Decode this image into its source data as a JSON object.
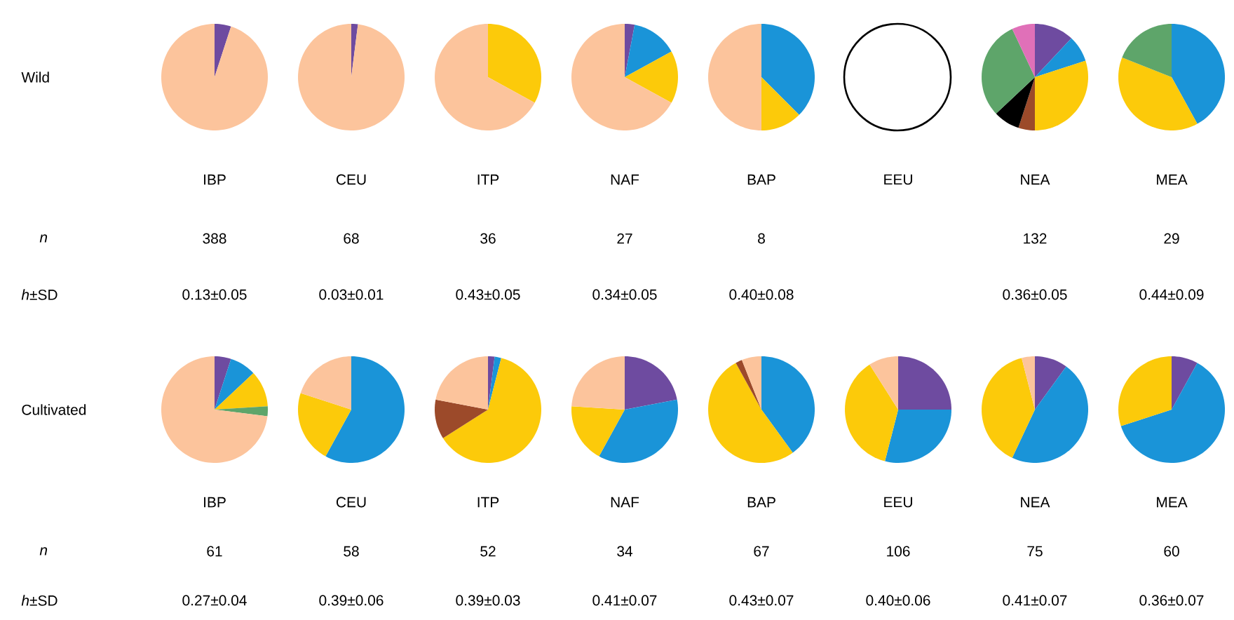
{
  "chart_data": [
    {
      "type": "other",
      "title": "Wild",
      "annotations": [
        "n",
        "*h*±SD"
      ]
    },
    {
      "type": "pie",
      "title": "IBP",
      "categories": [
        null,
        null
      ],
      "values": [
        5,
        95
      ],
      "colors": [
        "#6e4ba0",
        "#fcc49c"
      ],
      "annotations": [
        "388",
        "0.13±0.05"
      ]
    },
    {
      "type": "pie",
      "title": "CEU",
      "categories": [
        null,
        null
      ],
      "values": [
        2,
        98
      ],
      "colors": [
        "#6e4ba0",
        "#fcc49c"
      ],
      "annotations": [
        "68",
        "0.03±0.01"
      ]
    },
    {
      "type": "pie",
      "title": "ITP",
      "categories": [
        null,
        null
      ],
      "values": [
        33,
        67
      ],
      "colors": [
        "#fcca0a",
        "#fcc49c"
      ],
      "annotations": [
        "36",
        "0.43±0.05"
      ]
    },
    {
      "type": "pie",
      "title": "NAF",
      "categories": [
        null,
        null,
        null,
        null
      ],
      "values": [
        3,
        14,
        16,
        67
      ],
      "colors": [
        "#6e4ba0",
        "#1a94d8",
        "#fcca0a",
        "#fcc49c"
      ],
      "annotations": [
        "27",
        "0.34±0.05"
      ]
    },
    {
      "type": "pie",
      "title": "BAP",
      "categories": [
        null,
        null,
        null
      ],
      "values": [
        37.5,
        12.5,
        50
      ],
      "colors": [
        "#1a94d8",
        "#fcca0a",
        "#fcc49c"
      ],
      "annotations": [
        "8",
        "0.40±0.08"
      ]
    },
    {
      "type": "pie",
      "title": "EEU"
    },
    {
      "type": "pie",
      "title": "NEA",
      "categories": [
        null,
        null,
        null,
        null,
        null,
        null,
        null
      ],
      "values": [
        12,
        8,
        30,
        5,
        8,
        30,
        7
      ],
      "colors": [
        "#6e4ba0",
        "#1a94d8",
        "#fcca0a",
        "#9c4a2a",
        "#000000",
        "#5ea56a",
        "#e070b8"
      ],
      "annotations": [
        "132",
        "0.36±0.05"
      ]
    },
    {
      "type": "pie",
      "title": "MEA",
      "categories": [
        null,
        null,
        null
      ],
      "values": [
        42,
        39,
        19
      ],
      "colors": [
        "#1a94d8",
        "#fcca0a",
        "#5ea56a"
      ],
      "annotations": [
        "29",
        "0.44±0.09"
      ]
    },
    {
      "type": "other",
      "title": "Cultivated",
      "annotations": [
        "n",
        "*h*±SD"
      ]
    },
    {
      "type": "pie",
      "title": "IBP",
      "categories": [
        null,
        null,
        null,
        null,
        null
      ],
      "values": [
        5,
        8,
        11,
        3,
        73
      ],
      "colors": [
        "#6e4ba0",
        "#1a94d8",
        "#fcca0a",
        "#5ea56a",
        "#fcc49c"
      ],
      "annotations": [
        "61",
        "0.27±0.04"
      ]
    },
    {
      "type": "pie",
      "title": "CEU",
      "categories": [
        null,
        null,
        null
      ],
      "values": [
        58,
        22,
        20
      ],
      "colors": [
        "#1a94d8",
        "#fcca0a",
        "#fcc49c"
      ],
      "annotations": [
        "58",
        "0.39±0.06"
      ]
    },
    {
      "type": "pie",
      "title": "ITP",
      "categories": [
        null,
        null,
        null,
        null,
        null
      ],
      "values": [
        2,
        2,
        62,
        12,
        22
      ],
      "colors": [
        "#6e4ba0",
        "#1a94d8",
        "#fcca0a",
        "#9c4a2a",
        "#fcc49c"
      ],
      "annotations": [
        "52",
        "0.39±0.03"
      ]
    },
    {
      "type": "pie",
      "title": "NAF",
      "categories": [
        null,
        null,
        null,
        null
      ],
      "values": [
        22,
        36,
        18,
        24
      ],
      "colors": [
        "#6e4ba0",
        "#1a94d8",
        "#fcca0a",
        "#fcc49c"
      ],
      "annotations": [
        "34",
        "0.41±0.07"
      ]
    },
    {
      "type": "pie",
      "title": "BAP",
      "categories": [
        null,
        null,
        null,
        null
      ],
      "values": [
        40,
        52,
        2,
        6
      ],
      "colors": [
        "#1a94d8",
        "#fcca0a",
        "#9c4a2a",
        "#fcc49c"
      ],
      "annotations": [
        "67",
        "0.43±0.07"
      ]
    },
    {
      "type": "pie",
      "title": "EEU",
      "categories": [
        null,
        null,
        null,
        null
      ],
      "values": [
        25,
        29,
        37,
        9
      ],
      "colors": [
        "#6e4ba0",
        "#1a94d8",
        "#fcca0a",
        "#fcc49c"
      ],
      "annotations": [
        "106",
        "0.40±0.06"
      ]
    },
    {
      "type": "pie",
      "title": "NEA",
      "categories": [
        null,
        null,
        null,
        null
      ],
      "values": [
        10,
        47,
        39,
        4
      ],
      "colors": [
        "#6e4ba0",
        "#1a94d8",
        "#fcca0a",
        "#fcc49c"
      ],
      "annotations": [
        "75",
        "0.41±0.07"
      ]
    },
    {
      "type": "pie",
      "title": "MEA",
      "categories": [
        null,
        null,
        null
      ],
      "values": [
        8,
        62,
        30
      ],
      "colors": [
        "#6e4ba0",
        "#1a94d8",
        "#fcca0a"
      ],
      "annotations": [
        "60",
        "0.36±0.07"
      ]
    }
  ]
}
